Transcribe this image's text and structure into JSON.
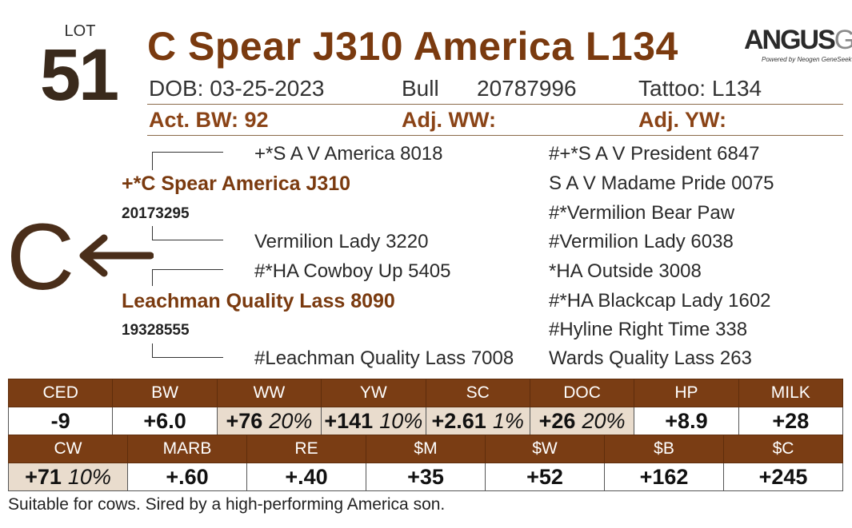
{
  "lot": {
    "label": "LOT",
    "number": "51"
  },
  "animal": {
    "name": "C Spear J310 America L134"
  },
  "logo": {
    "main": "ANGUS",
    "suffix": "GS",
    "tagline": "Powered by Neogen GeneSeek"
  },
  "info": {
    "dob_label": "DOB:",
    "dob": "03-25-2023",
    "sex": "Bull",
    "registration": "20787996",
    "tattoo_label": "Tattoo:",
    "tattoo": "L134"
  },
  "performance": {
    "act_bw": "Act. BW: 92",
    "adj_ww": "Adj. WW:",
    "adj_yw": "Adj. YW:"
  },
  "pedigree": {
    "sire": "+*C Spear America J310",
    "sire_reg": "20173295",
    "sire_sire": "+*S A V America 8018",
    "sire_dam": "Vermilion Lady 3220",
    "dam": "Leachman Quality Lass 8090",
    "dam_reg": "19328555",
    "dam_sire": "#*HA Cowboy Up 5405",
    "dam_dam": "#Leachman Quality Lass 7008",
    "right_column": [
      "#+*S A V President 6847",
      "S A V Madame Pride 0075",
      "#*Vermilion Bear Paw",
      "#Vermilion Lady 6038",
      "*HA Outside 3008",
      "#*HA Blackcap Lady 1602",
      "#Hyline Right Time 338",
      "Wards Quality Lass 263"
    ],
    "marker_letter": "C"
  },
  "epd_row1": [
    {
      "label": "CED",
      "value": "-9",
      "pct": ""
    },
    {
      "label": "BW",
      "value": "+6.0",
      "pct": ""
    },
    {
      "label": "WW",
      "value": "+76",
      "pct": "20%"
    },
    {
      "label": "YW",
      "value": "+141",
      "pct": "10%"
    },
    {
      "label": "SC",
      "value": "+2.61",
      "pct": "1%"
    },
    {
      "label": "DOC",
      "value": "+26",
      "pct": "20%"
    },
    {
      "label": "HP",
      "value": "+8.9",
      "pct": ""
    },
    {
      "label": "MILK",
      "value": "+28",
      "pct": ""
    }
  ],
  "epd_row2": [
    {
      "label": "CW",
      "value": "+71",
      "pct": "10%"
    },
    {
      "label": "MARB",
      "value": "+.60",
      "pct": ""
    },
    {
      "label": "RE",
      "value": "+.40",
      "pct": ""
    },
    {
      "label": "$M",
      "value": "+35",
      "pct": ""
    },
    {
      "label": "$W",
      "value": "+52",
      "pct": ""
    },
    {
      "label": "$B",
      "value": "+162",
      "pct": ""
    },
    {
      "label": "$C",
      "value": "+245",
      "pct": ""
    }
  ],
  "comment": "Suitable for cows. Sired by a high-performing America son.",
  "colors": {
    "brown": "#7a3d14",
    "title": "#7a3a0f",
    "highlight": "#e9dccd"
  }
}
